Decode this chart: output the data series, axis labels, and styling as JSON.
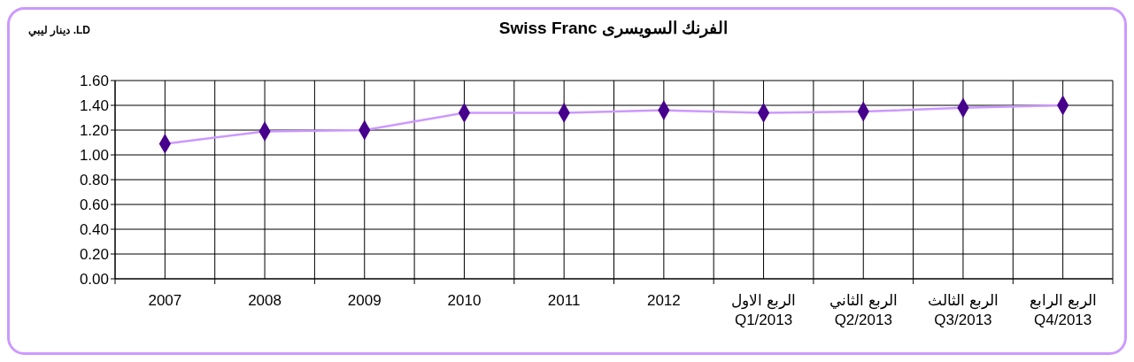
{
  "chart_data": {
    "type": "line",
    "title": "Swiss Franc الفرنك السويسرى",
    "ylabel": "دينار ليبي .LD",
    "categories": [
      "2007",
      "2008",
      "2009",
      "2010",
      "2011",
      "2012",
      "الربع الاول\nQ1/2013",
      "الربع الثاني\nQ2/2013",
      "الربع الثالث\nQ3/2013",
      "الربع الرابع\nQ4/2013"
    ],
    "series": [
      {
        "color": "#cc99ff",
        "values": [
          1.09,
          1.19,
          1.2,
          1.34,
          1.34,
          1.36,
          1.34,
          1.35,
          1.38,
          1.4
        ]
      }
    ],
    "marker": "diamond",
    "ylim": [
      0,
      1.6
    ],
    "yticks": [
      {
        "value": 0,
        "label": "0.00"
      },
      {
        "value": 0.2,
        "label": "0.20"
      },
      {
        "value": 0.4,
        "label": "0.40"
      },
      {
        "value": 0.6,
        "label": "0.60"
      },
      {
        "value": 0.8,
        "label": "0.80"
      },
      {
        "value": 1,
        "label": "1.00"
      },
      {
        "value": 1.2,
        "label": "1.20"
      },
      {
        "value": 1.4,
        "label": "1.40"
      },
      {
        "value": 1.6,
        "label": "1.60"
      }
    ],
    "grid": true
  }
}
